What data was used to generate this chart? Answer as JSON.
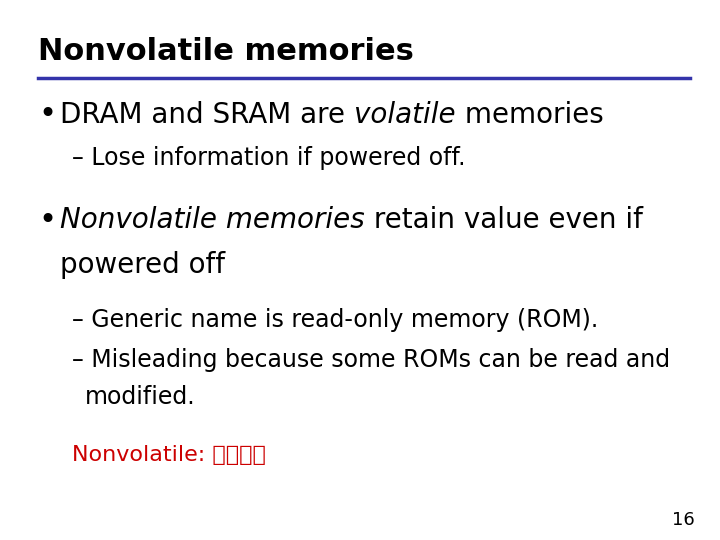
{
  "title": "Nonvolatile memories",
  "title_color": "#000000",
  "title_fontsize": 20,
  "line_color": "#3333AA",
  "bg_color": "#FFFFFF",
  "page_num": "16",
  "annotation_color": "#CC0000",
  "annotation_text": "Nonvolatile: 非易失的"
}
